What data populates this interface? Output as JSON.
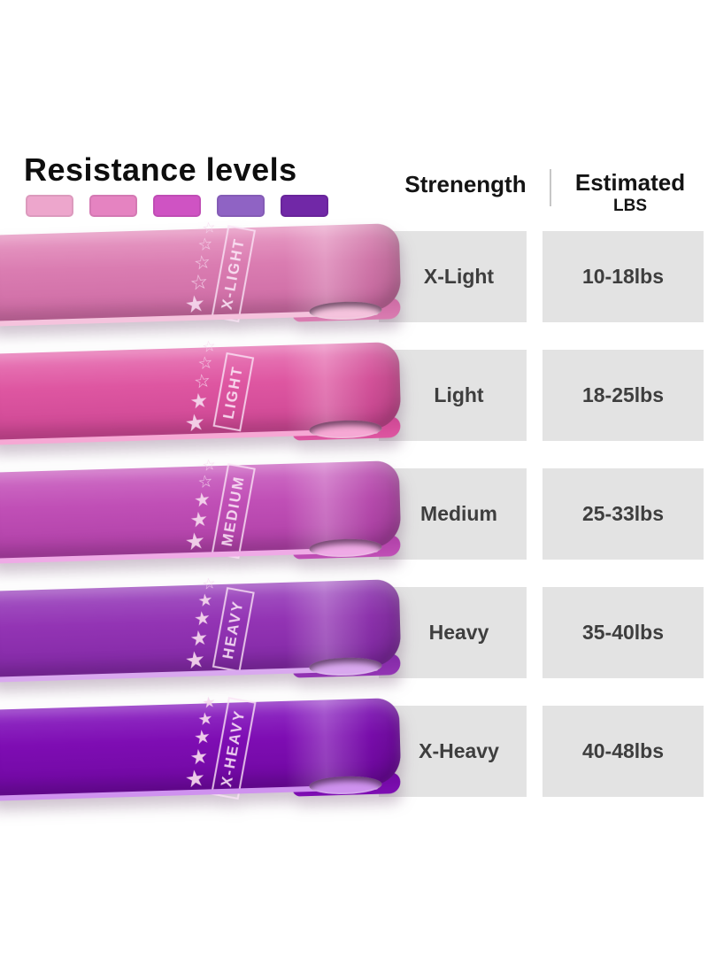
{
  "title": "Resistance levels",
  "palette": {
    "swatches": [
      {
        "name": "x-light",
        "color": "#eda6cc"
      },
      {
        "name": "light",
        "color": "#e583c1"
      },
      {
        "name": "medium",
        "color": "#cf53c3"
      },
      {
        "name": "heavy",
        "color": "#8f63c4"
      },
      {
        "name": "x-heavy",
        "color": "#7128a7"
      }
    ]
  },
  "table": {
    "strength_header": "Strenength",
    "estimated_header_line1": "Estimated",
    "estimated_header_line2": "LBS"
  },
  "icons": {
    "star_filled": "★",
    "star_outline": "☆"
  },
  "bands": [
    {
      "label": "X-Light",
      "band_label": "X-LIGHT",
      "lbs": "10-18lbs",
      "stars_filled": 1,
      "stars_total": 5,
      "color": "#da7cb1",
      "color_light": "#e89cc5",
      "color_dark": "#cc6aa3",
      "edge_color": "#f5c3dd"
    },
    {
      "label": "Light",
      "band_label": "LIGHT",
      "lbs": "18-25lbs",
      "stars_filled": 2,
      "stars_total": 5,
      "color": "#de56a1",
      "color_light": "#e97cb9",
      "color_dark": "#cc4693",
      "edge_color": "#f6a8d4"
    },
    {
      "label": "Medium",
      "band_label": "MEDIUM",
      "lbs": "25-33lbs",
      "stars_filled": 3,
      "stars_total": 5,
      "color": "#c04fb6",
      "color_light": "#cf6fc6",
      "color_dark": "#ae3fa6",
      "edge_color": "#efaae6"
    },
    {
      "label": "Heavy",
      "band_label": "HEAVY",
      "lbs": "35-40lbs",
      "stars_filled": 4,
      "stars_total": 5,
      "color": "#9334b4",
      "color_light": "#a557c4",
      "color_dark": "#8128a4",
      "edge_color": "#d9a8ef"
    },
    {
      "label": "X-Heavy",
      "band_label": "X-HEAVY",
      "lbs": "40-48lbs",
      "stars_filled": 5,
      "stars_total": 5,
      "color": "#7e0db3",
      "color_light": "#9332c6",
      "color_dark": "#6f08a0",
      "edge_color": "#cf92ef"
    }
  ],
  "chart_data": {
    "type": "table",
    "title": "Resistance levels",
    "columns": [
      "Strenength",
      "Estimated LBS"
    ],
    "rows": [
      [
        "X-Light",
        "10-18lbs"
      ],
      [
        "Light",
        "18-25lbs"
      ],
      [
        "Medium",
        "25-33lbs"
      ],
      [
        "Heavy",
        "35-40lbs"
      ],
      [
        "X-Heavy",
        "40-48lbs"
      ]
    ]
  }
}
